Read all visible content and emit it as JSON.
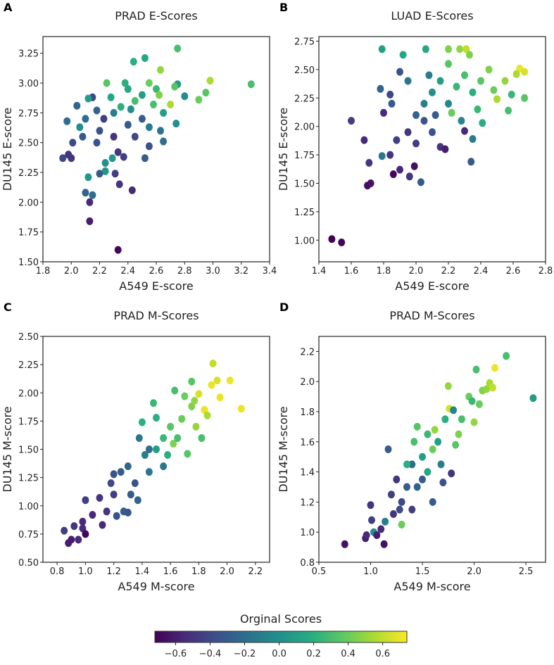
{
  "colorbar": {
    "label": "Orginal Scores",
    "range": [
      -0.72,
      0.74
    ],
    "ticks": [
      -0.6,
      -0.4,
      -0.2,
      0.0,
      0.2,
      0.4,
      0.6
    ],
    "tick_labels": [
      "−0.6",
      "−0.4",
      "−0.2",
      "0.0",
      "0.2",
      "0.4",
      "0.6"
    ],
    "colormap": "viridis"
  },
  "chart_data": [
    {
      "panel": "A",
      "type": "scatter",
      "title": "PRAD E-Scores",
      "xlabel": "A549 E-score",
      "ylabel": "DU145 E-score",
      "xlim": [
        1.8,
        3.4
      ],
      "ylim": [
        1.5,
        3.39
      ],
      "xticks": [
        1.8,
        2.0,
        2.2,
        2.4,
        2.6,
        2.8,
        3.0,
        3.2,
        3.4
      ],
      "xtick_labels": [
        "1.8",
        "2.0",
        "2.2",
        "2.4",
        "2.6",
        "2.8",
        "3.0",
        "3.2",
        "3.4"
      ],
      "yticks": [
        1.5,
        1.75,
        2.0,
        2.25,
        2.5,
        2.75,
        3.0,
        3.25
      ],
      "ytick_labels": [
        "1.50",
        "1.75",
        "2.00",
        "2.25",
        "2.50",
        "2.75",
        "3.00",
        "3.25"
      ],
      "points_xyc": [
        [
          3.27,
          2.99,
          0.3
        ],
        [
          2.98,
          3.02,
          0.55
        ],
        [
          2.95,
          2.92,
          0.35
        ],
        [
          2.9,
          2.86,
          0.4
        ],
        [
          2.75,
          3.29,
          0.3
        ],
        [
          2.63,
          3.11,
          0.5
        ],
        [
          2.52,
          3.21,
          0.15
        ],
        [
          2.44,
          3.18,
          0.2
        ],
        [
          2.33,
          1.6,
          -0.7
        ],
        [
          2.13,
          1.84,
          -0.6
        ],
        [
          2.13,
          2.0,
          -0.55
        ],
        [
          2.15,
          2.06,
          -0.2
        ],
        [
          2.1,
          2.08,
          -0.25
        ],
        [
          2.12,
          2.21,
          0.05
        ],
        [
          2.43,
          2.1,
          -0.55
        ],
        [
          2.34,
          2.15,
          -0.5
        ],
        [
          2.31,
          2.24,
          -0.45
        ],
        [
          1.94,
          2.37,
          -0.4
        ],
        [
          1.98,
          2.4,
          -0.5
        ],
        [
          2.0,
          2.37,
          -0.5
        ],
        [
          2.01,
          2.5,
          -0.4
        ],
        [
          1.97,
          2.68,
          -0.2
        ],
        [
          2.04,
          2.81,
          -0.25
        ],
        [
          2.06,
          2.63,
          0.0
        ],
        [
          2.24,
          2.26,
          0.05
        ],
        [
          2.2,
          2.24,
          -0.3
        ],
        [
          2.24,
          2.33,
          0.0
        ],
        [
          2.29,
          2.37,
          0.05
        ],
        [
          2.33,
          2.42,
          -0.5
        ],
        [
          2.37,
          2.38,
          -0.45
        ],
        [
          2.52,
          2.37,
          -0.3
        ],
        [
          2.55,
          2.47,
          -0.35
        ],
        [
          2.65,
          2.51,
          -0.2
        ],
        [
          2.63,
          2.6,
          -0.15
        ],
        [
          2.74,
          2.66,
          0.0
        ],
        [
          2.8,
          2.89,
          0.0
        ],
        [
          2.75,
          2.99,
          0.05
        ],
        [
          2.7,
          2.82,
          0.55
        ],
        [
          2.73,
          2.97,
          0.35
        ],
        [
          2.15,
          2.88,
          -0.4
        ],
        [
          2.12,
          2.87,
          0.1
        ],
        [
          2.23,
          2.7,
          -0.45
        ],
        [
          2.3,
          2.75,
          -0.1
        ],
        [
          2.35,
          2.8,
          0.2
        ],
        [
          2.4,
          2.95,
          0.15
        ],
        [
          2.45,
          2.85,
          0.3
        ],
        [
          2.5,
          2.9,
          0.1
        ],
        [
          2.55,
          3.0,
          0.4
        ],
        [
          2.6,
          2.95,
          0.25
        ],
        [
          2.5,
          2.7,
          -0.3
        ],
        [
          2.4,
          2.65,
          -0.3
        ],
        [
          2.2,
          2.6,
          -0.35
        ],
        [
          2.25,
          3.0,
          0.35
        ],
        [
          2.38,
          3.0,
          0.2
        ],
        [
          2.58,
          2.82,
          0.3
        ],
        [
          2.62,
          2.9,
          0.45
        ],
        [
          2.65,
          2.75,
          0.1
        ],
        [
          2.3,
          2.55,
          -0.5
        ],
        [
          2.18,
          2.5,
          -0.35
        ],
        [
          2.45,
          2.55,
          -0.4
        ],
        [
          2.1,
          2.7,
          -0.2
        ],
        [
          2.28,
          2.88,
          0.15
        ],
        [
          2.42,
          2.78,
          0.0
        ],
        [
          2.55,
          2.63,
          -0.1
        ],
        [
          2.08,
          2.55,
          -0.3
        ],
        [
          2.18,
          2.77,
          -0.25
        ]
      ]
    },
    {
      "panel": "B",
      "type": "scatter",
      "title": "LUAD E-Scores",
      "xlabel": "A549 E-score",
      "ylabel": "DU145 E-score",
      "xlim": [
        1.4,
        2.8
      ],
      "ylim": [
        0.81,
        2.79
      ],
      "xticks": [
        1.4,
        1.6,
        1.8,
        2.0,
        2.2,
        2.4,
        2.6,
        2.8
      ],
      "xtick_labels": [
        "1.4",
        "1.6",
        "1.8",
        "2.0",
        "2.2",
        "2.4",
        "2.6",
        "2.8"
      ],
      "yticks": [
        1.0,
        1.25,
        1.5,
        1.75,
        2.0,
        2.25,
        2.5,
        2.75
      ],
      "ytick_labels": [
        "1.00",
        "1.25",
        "1.50",
        "1.75",
        "2.00",
        "2.25",
        "2.50",
        "2.75"
      ],
      "points_xyc": [
        [
          1.48,
          1.01,
          -0.72
        ],
        [
          1.54,
          0.98,
          -0.7
        ],
        [
          1.7,
          1.48,
          -0.65
        ],
        [
          1.72,
          1.5,
          -0.65
        ],
        [
          1.71,
          1.68,
          -0.5
        ],
        [
          1.68,
          1.88,
          -0.55
        ],
        [
          1.6,
          2.05,
          -0.45
        ],
        [
          1.86,
          1.58,
          -0.7
        ],
        [
          1.9,
          1.62,
          -0.55
        ],
        [
          1.96,
          1.56,
          -0.5
        ],
        [
          2.03,
          1.51,
          -0.3
        ],
        [
          1.99,
          1.65,
          -0.65
        ],
        [
          1.79,
          1.74,
          -0.15
        ],
        [
          1.84,
          1.75,
          -0.5
        ],
        [
          2.34,
          1.69,
          -0.3
        ],
        [
          2.35,
          1.89,
          -0.1
        ],
        [
          1.79,
          2.68,
          0.1
        ],
        [
          1.92,
          2.63,
          0.15
        ],
        [
          2.06,
          2.68,
          0.15
        ],
        [
          2.2,
          2.68,
          0.45
        ],
        [
          2.27,
          2.68,
          0.5
        ],
        [
          2.31,
          2.68,
          0.6
        ],
        [
          2.33,
          2.63,
          0.45
        ],
        [
          2.64,
          2.51,
          0.7
        ],
        [
          2.67,
          2.48,
          0.65
        ],
        [
          2.67,
          2.25,
          0.35
        ],
        [
          2.57,
          2.14,
          0.3
        ],
        [
          2.59,
          2.28,
          0.25
        ],
        [
          2.41,
          2.03,
          0.2
        ],
        [
          2.5,
          2.24,
          0.55
        ],
        [
          1.78,
          2.33,
          -0.25
        ],
        [
          1.84,
          2.28,
          -0.4
        ],
        [
          1.9,
          2.48,
          -0.35
        ],
        [
          1.95,
          2.4,
          -0.15
        ],
        [
          1.8,
          2.12,
          -0.55
        ],
        [
          1.85,
          2.2,
          -0.3
        ],
        [
          1.88,
          1.88,
          -0.45
        ],
        [
          1.95,
          1.95,
          -0.5
        ],
        [
          2.0,
          2.1,
          -0.25
        ],
        [
          2.05,
          2.2,
          -0.1
        ],
        [
          2.1,
          2.3,
          0.0
        ],
        [
          2.15,
          2.4,
          0.1
        ],
        [
          2.2,
          2.2,
          -0.05
        ],
        [
          2.25,
          2.35,
          0.25
        ],
        [
          2.3,
          2.45,
          0.3
        ],
        [
          2.35,
          2.3,
          0.2
        ],
        [
          2.4,
          2.4,
          0.35
        ],
        [
          2.45,
          2.5,
          0.45
        ],
        [
          2.55,
          2.4,
          0.5
        ],
        [
          2.62,
          2.46,
          0.55
        ],
        [
          2.2,
          2.55,
          0.35
        ],
        [
          2.0,
          1.85,
          -0.45
        ],
        [
          2.1,
          1.95,
          -0.35
        ],
        [
          2.15,
          1.82,
          -0.5
        ],
        [
          2.18,
          1.8,
          -0.6
        ],
        [
          2.28,
          2.05,
          -0.05
        ],
        [
          2.05,
          2.05,
          -0.35
        ],
        [
          2.12,
          2.1,
          -0.3
        ],
        [
          2.08,
          2.45,
          -0.1
        ],
        [
          2.3,
          1.96,
          -0.55
        ],
        [
          2.38,
          2.15,
          0.25
        ],
        [
          2.48,
          2.32,
          0.4
        ],
        [
          2.22,
          2.12,
          0.4
        ]
      ]
    },
    {
      "panel": "C",
      "type": "scatter",
      "title": "PRAD M-Scores",
      "xlabel": "A549 M-score",
      "ylabel": "DU145 M-score",
      "xlim": [
        0.7,
        2.3
      ],
      "ylim": [
        0.5,
        2.5
      ],
      "xticks": [
        0.8,
        1.0,
        1.2,
        1.4,
        1.6,
        1.8,
        2.0,
        2.2
      ],
      "xtick_labels": [
        "0.8",
        "1.0",
        "1.2",
        "1.4",
        "1.6",
        "1.8",
        "2.0",
        "2.2"
      ],
      "yticks": [
        0.5,
        0.75,
        1.0,
        1.25,
        1.5,
        1.75,
        2.0,
        2.25,
        2.5
      ],
      "ytick_labels": [
        "0.50",
        "0.75",
        "1.00",
        "1.25",
        "1.50",
        "1.75",
        "2.00",
        "2.25",
        "2.50"
      ],
      "points_xyc": [
        [
          0.85,
          0.78,
          -0.45
        ],
        [
          0.88,
          0.67,
          -0.6
        ],
        [
          0.9,
          0.7,
          -0.6
        ],
        [
          0.92,
          0.82,
          -0.5
        ],
        [
          0.95,
          0.7,
          -0.55
        ],
        [
          0.98,
          0.8,
          -0.55
        ],
        [
          1.0,
          0.75,
          -0.7
        ],
        [
          1.0,
          1.05,
          -0.45
        ],
        [
          0.98,
          0.86,
          -0.55
        ],
        [
          1.05,
          0.92,
          -0.55
        ],
        [
          1.1,
          1.07,
          -0.5
        ],
        [
          1.12,
          0.83,
          -0.55
        ],
        [
          1.15,
          0.95,
          -0.5
        ],
        [
          1.18,
          1.2,
          -0.4
        ],
        [
          1.2,
          1.1,
          -0.45
        ],
        [
          1.22,
          0.91,
          -0.35
        ],
        [
          1.27,
          0.95,
          -0.3
        ],
        [
          1.3,
          0.94,
          -0.35
        ],
        [
          1.37,
          1.05,
          -0.25
        ],
        [
          1.25,
          1.3,
          -0.3
        ],
        [
          1.3,
          1.35,
          -0.25
        ],
        [
          1.35,
          1.2,
          -0.35
        ],
        [
          1.38,
          1.6,
          -0.15
        ],
        [
          1.4,
          1.74,
          0.2
        ],
        [
          1.42,
          1.45,
          -0.1
        ],
        [
          1.45,
          1.3,
          -0.15
        ],
        [
          1.48,
          1.91,
          0.25
        ],
        [
          1.5,
          1.78,
          0.2
        ],
        [
          1.5,
          1.5,
          0.1
        ],
        [
          1.55,
          1.6,
          0.25
        ],
        [
          1.58,
          1.45,
          0.2
        ],
        [
          1.6,
          1.7,
          0.35
        ],
        [
          1.63,
          2.02,
          0.3
        ],
        [
          1.62,
          1.55,
          0.45
        ],
        [
          1.65,
          1.6,
          0.3
        ],
        [
          1.68,
          1.77,
          0.4
        ],
        [
          1.7,
          1.97,
          0.4
        ],
        [
          1.72,
          1.46,
          0.35
        ],
        [
          1.75,
          2.1,
          0.35
        ],
        [
          1.75,
          1.88,
          0.45
        ],
        [
          1.78,
          1.7,
          0.5
        ],
        [
          1.77,
          1.93,
          0.5
        ],
        [
          1.82,
          1.6,
          0.3
        ],
        [
          1.8,
          1.99,
          0.65
        ],
        [
          1.84,
          1.85,
          0.7
        ],
        [
          1.86,
          1.8,
          0.55
        ],
        [
          1.9,
          2.26,
          0.6
        ],
        [
          1.89,
          2.07,
          0.7
        ],
        [
          1.93,
          2.11,
          0.65
        ],
        [
          1.95,
          1.96,
          0.7
        ],
        [
          2.02,
          2.11,
          0.7
        ],
        [
          2.1,
          1.86,
          0.7
        ],
        [
          1.45,
          1.5,
          -0.2
        ],
        [
          1.32,
          1.1,
          -0.3
        ],
        [
          1.2,
          1.28,
          -0.35
        ],
        [
          1.55,
          1.35,
          -0.15
        ]
      ]
    },
    {
      "panel": "D",
      "type": "scatter",
      "title": "PRAD M-Scores",
      "xlabel": "A549 M-score",
      "ylabel": "DU145 M-score",
      "xlim": [
        0.5,
        2.69
      ],
      "ylim": [
        0.8,
        2.3
      ],
      "xticks": [
        0.5,
        1.0,
        1.5,
        2.0,
        2.5
      ],
      "xtick_labels": [
        "0.5",
        "1.0",
        "1.5",
        "2.0",
        "2.5"
      ],
      "yticks": [
        0.8,
        1.0,
        1.2,
        1.4,
        1.6,
        1.8,
        2.0,
        2.2
      ],
      "ytick_labels": [
        "0.8",
        "1.0",
        "1.2",
        "1.4",
        "1.6",
        "1.8",
        "2.0",
        "2.2"
      ],
      "points_xyc": [
        [
          0.75,
          0.92,
          -0.65
        ],
        [
          0.95,
          0.96,
          -0.6
        ],
        [
          0.96,
          0.98,
          -0.55
        ],
        [
          1.0,
          1.18,
          -0.5
        ],
        [
          1.01,
          1.08,
          -0.45
        ],
        [
          1.03,
          1.0,
          0.0
        ],
        [
          1.06,
          0.98,
          -0.6
        ],
        [
          1.1,
          1.02,
          -0.55
        ],
        [
          1.13,
          0.92,
          -0.65
        ],
        [
          1.14,
          1.07,
          -0.1
        ],
        [
          1.17,
          1.55,
          -0.3
        ],
        [
          1.2,
          1.25,
          -0.45
        ],
        [
          1.25,
          1.35,
          -0.5
        ],
        [
          1.3,
          1.05,
          0.4
        ],
        [
          1.28,
          1.15,
          -0.4
        ],
        [
          1.35,
          1.3,
          -0.3
        ],
        [
          1.4,
          1.15,
          -0.45
        ],
        [
          1.4,
          1.45,
          -0.2
        ],
        [
          1.42,
          1.6,
          0.3
        ],
        [
          1.45,
          1.7,
          0.35
        ],
        [
          1.5,
          1.5,
          0.1
        ],
        [
          1.5,
          1.35,
          -0.3
        ],
        [
          1.55,
          1.65,
          0.25
        ],
        [
          1.6,
          1.2,
          -0.3
        ],
        [
          1.6,
          1.55,
          0.4
        ],
        [
          1.65,
          1.6,
          0.1
        ],
        [
          1.68,
          1.45,
          -0.1
        ],
        [
          1.7,
          1.33,
          -0.35
        ],
        [
          1.72,
          1.75,
          0.2
        ],
        [
          1.75,
          1.97,
          0.5
        ],
        [
          1.76,
          1.82,
          0.65
        ],
        [
          1.78,
          1.39,
          -0.5
        ],
        [
          1.8,
          1.81,
          -0.05
        ],
        [
          1.82,
          1.58,
          0.35
        ],
        [
          1.85,
          1.65,
          0.45
        ],
        [
          1.88,
          1.75,
          0.3
        ],
        [
          1.95,
          1.9,
          0.4
        ],
        [
          1.98,
          1.87,
          0.25
        ],
        [
          2.0,
          1.73,
          0.5
        ],
        [
          2.02,
          2.08,
          0.3
        ],
        [
          2.05,
          1.85,
          0.4
        ],
        [
          2.08,
          1.94,
          0.45
        ],
        [
          2.12,
          1.95,
          0.5
        ],
        [
          2.15,
          1.99,
          0.55
        ],
        [
          2.18,
          1.96,
          0.6
        ],
        [
          2.2,
          2.09,
          0.7
        ],
        [
          2.31,
          2.17,
          0.3
        ],
        [
          2.57,
          1.89,
          0.1
        ],
        [
          1.35,
          1.45,
          0.2
        ],
        [
          1.45,
          1.3,
          -0.25
        ],
        [
          1.55,
          1.4,
          0.15
        ],
        [
          1.62,
          1.68,
          0.5
        ],
        [
          1.3,
          1.2,
          -0.4
        ],
        [
          1.22,
          1.12,
          -0.5
        ]
      ]
    }
  ]
}
